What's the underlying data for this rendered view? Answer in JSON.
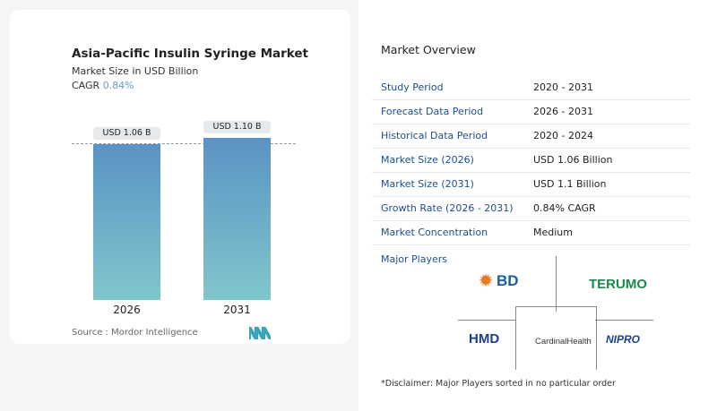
{
  "chart_data": {
    "type": "bar",
    "title": "Asia-Pacific Insulin Syringe Market",
    "subtitle": "Market Size in USD Billion",
    "cagr_label": "CAGR",
    "cagr_value": "0.84%",
    "categories": [
      "2026",
      "2031"
    ],
    "values": [
      1.06,
      1.1
    ],
    "data_labels": [
      "USD 1.06 B",
      "USD 1.10 B"
    ],
    "source": "Source :  Mordor Intelligence",
    "colors": {
      "bar_top": "#5b93c4",
      "bar_bottom": "#80c6cc",
      "cagr": "#6a9cc7"
    }
  },
  "overview": {
    "title": "Market Overview",
    "rows": [
      {
        "label": "Study Period",
        "value": "2020 - 2031"
      },
      {
        "label": "Forecast Data Period",
        "value": "2026 - 2031"
      },
      {
        "label": "Historical Data Period",
        "value": "2020 - 2024"
      },
      {
        "label": "Market Size (2026)",
        "value": "USD 1.06 Billion"
      },
      {
        "label": "Market Size (2031)",
        "value": "USD 1.1 Billion"
      },
      {
        "label": "Growth Rate (2026 - 2031)",
        "value": "0.84% CAGR"
      },
      {
        "label": "Market Concentration",
        "value": "Medium"
      }
    ],
    "players_title": "Major Players",
    "players": [
      "BD",
      "TERUMO",
      "HMD",
      "CardinalHealth",
      "NIPRO"
    ],
    "disclaimer": "*Disclaimer: Major Players sorted in no particular order"
  }
}
